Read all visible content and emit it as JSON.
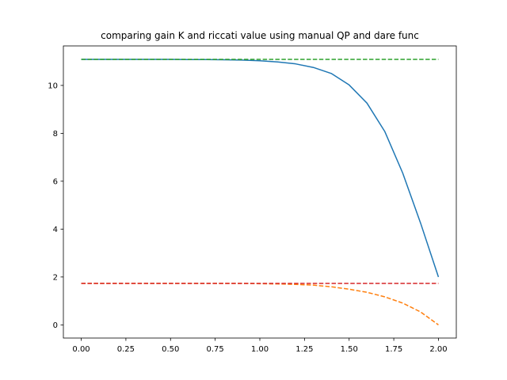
{
  "chart_data": {
    "type": "line",
    "title": "comparing gain K and riccati value using manual QP and dare func",
    "xlabel": "",
    "ylabel": "",
    "xlim": [
      -0.1,
      2.1
    ],
    "ylim": [
      -0.55,
      11.65
    ],
    "xticks": [
      0.0,
      0.25,
      0.5,
      0.75,
      1.0,
      1.25,
      1.5,
      1.75,
      2.0
    ],
    "xtick_labels": [
      "0.00",
      "0.25",
      "0.50",
      "0.75",
      "1.00",
      "1.25",
      "1.50",
      "1.75",
      "2.00"
    ],
    "yticks": [
      0,
      2,
      4,
      6,
      8,
      10
    ],
    "ytick_labels": [
      "0",
      "2",
      "4",
      "6",
      "8",
      "10"
    ],
    "grid": false,
    "legend": "none",
    "x": [
      0.0,
      0.1,
      0.2,
      0.3,
      0.4,
      0.5,
      0.6,
      0.7,
      0.8,
      0.9,
      1.0,
      1.1,
      1.2,
      1.3,
      1.4,
      1.5,
      1.6,
      1.7,
      1.8,
      1.9,
      2.0
    ],
    "series": [
      {
        "color": "#1f77b4",
        "style": "solid",
        "values": [
          11.09,
          11.09,
          11.09,
          11.09,
          11.09,
          11.09,
          11.08,
          11.08,
          11.07,
          11.06,
          11.03,
          10.98,
          10.9,
          10.75,
          10.5,
          10.02,
          9.26,
          8.07,
          6.34,
          4.25,
          2.0
        ]
      },
      {
        "color": "#ff7f0e",
        "style": "dashed",
        "values": [
          1.73,
          1.73,
          1.73,
          1.73,
          1.73,
          1.73,
          1.73,
          1.73,
          1.73,
          1.73,
          1.72,
          1.71,
          1.69,
          1.66,
          1.59,
          1.49,
          1.36,
          1.17,
          0.91,
          0.54,
          0.0
        ]
      },
      {
        "color": "#2ca02c",
        "style": "dashed",
        "values": [
          11.09,
          11.09,
          11.09,
          11.09,
          11.09,
          11.09,
          11.09,
          11.09,
          11.09,
          11.09,
          11.09,
          11.09,
          11.09,
          11.09,
          11.09,
          11.09,
          11.09,
          11.09,
          11.09,
          11.09,
          11.09
        ]
      },
      {
        "color": "#d62728",
        "style": "dashed",
        "values": [
          1.73,
          1.73,
          1.73,
          1.73,
          1.73,
          1.73,
          1.73,
          1.73,
          1.73,
          1.73,
          1.73,
          1.73,
          1.73,
          1.73,
          1.73,
          1.73,
          1.73,
          1.73,
          1.73,
          1.73,
          1.73
        ]
      }
    ]
  }
}
